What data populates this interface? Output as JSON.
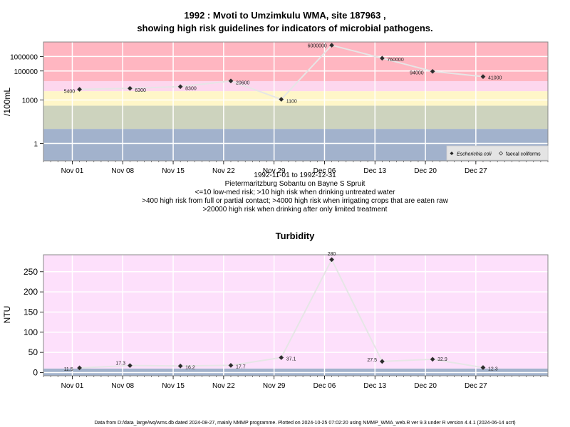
{
  "chart_data": [
    {
      "type": "line",
      "title_line1": "1992 : Mvoti to Umzimkulu WMA, site 187963 ,",
      "title_line2": "showing high risk guidelines for indicators of microbial pathogens.",
      "ylabel": "/100mL",
      "y_scale": "log",
      "yticks": [
        1,
        1000,
        100000,
        1000000
      ],
      "ytick_labels": [
        "1",
        "1000",
        "100000",
        "1000000"
      ],
      "xtick_labels": [
        "Nov 01",
        "Nov 08",
        "Nov 15",
        "Nov 22",
        "Nov 29",
        "Dec 06",
        "Dec 13",
        "Dec 20",
        "Dec 27"
      ],
      "xtick_dates": [
        "1992-11-01",
        "1992-11-08",
        "1992-11-15",
        "1992-11-22",
        "1992-11-29",
        "1992-12-06",
        "1992-12-13",
        "1992-12-20",
        "1992-12-27"
      ],
      "xlim": [
        "1992-10-28",
        "1993-01-06"
      ],
      "bands": [
        {
          "from": 20000,
          "to": 100000000,
          "color": "#ffb6c1"
        },
        {
          "from": 4000,
          "to": 20000,
          "color": "#fdd7ee"
        },
        {
          "from": 400,
          "to": 4000,
          "color": "#fff6c8"
        },
        {
          "from": 10,
          "to": 400,
          "color": "#cdd3be"
        },
        {
          "from": 0.01,
          "to": 10,
          "color": "#a2b2cc"
        }
      ],
      "series": [
        {
          "name": "Escherichia coli",
          "x": [
            "1992-11-02",
            "1992-11-09",
            "1992-11-16",
            "1992-11-23",
            "1992-11-30",
            "1992-12-07",
            "1992-12-14",
            "1992-12-21",
            "1992-12-28"
          ],
          "y": [
            5400,
            6300,
            8300,
            20600,
            1100,
            6000000,
            760000,
            94000,
            41000
          ],
          "labels": [
            "5400",
            "6300",
            "8300",
            "20600",
            "1100",
            "6000000",
            "760000",
            "94000",
            "41000"
          ]
        }
      ],
      "legend": {
        "position": "bottom-right",
        "items": [
          "Escherichia coli",
          "faecal coliforms"
        ]
      },
      "subtitle_lines": [
        "1992-11-01 to 1992-12-31",
        "Pietermaritzburg Sobantu on Bayne S Spruit",
        "<=10 low-med risk; >10 high risk when drinking untreated water",
        ">400 high risk from full or partial contact; >4000 high risk when irrigating crops that are eaten raw",
        ">20000 high risk when drinking after only limited treatment"
      ],
      "grid": true
    },
    {
      "type": "line",
      "title": "Turbidity",
      "ylabel": "NTU",
      "ylim": [
        -8,
        292
      ],
      "yticks": [
        0,
        50,
        100,
        150,
        200,
        250
      ],
      "ytick_labels": [
        "0",
        "50",
        "100",
        "150",
        "200",
        "250"
      ],
      "xtick_labels": [
        "Nov 01",
        "Nov 08",
        "Nov 15",
        "Nov 22",
        "Nov 29",
        "Dec 06",
        "Dec 13",
        "Dec 20",
        "Dec 27"
      ],
      "xtick_dates": [
        "1992-11-01",
        "1992-11-08",
        "1992-11-15",
        "1992-11-22",
        "1992-11-29",
        "1992-12-06",
        "1992-12-13",
        "1992-12-20",
        "1992-12-27"
      ],
      "xlim": [
        "1992-10-28",
        "1993-01-06"
      ],
      "bands": [
        {
          "from": -8,
          "to": 10,
          "color": "#a2b2cc"
        },
        {
          "from": 10,
          "to": 292,
          "color": "#fde0fb"
        }
      ],
      "series": [
        {
          "name": "Turbidity",
          "x": [
            "1992-11-02",
            "1992-11-09",
            "1992-11-16",
            "1992-11-23",
            "1992-11-30",
            "1992-12-07",
            "1992-12-14",
            "1992-12-21",
            "1992-12-28"
          ],
          "y": [
            11.5,
            17.3,
            16.2,
            17.7,
            37.1,
            280,
            27.5,
            32.9,
            12.3
          ],
          "labels": [
            "11.5",
            "17.3",
            "16.2",
            "17.7",
            "37.1",
            "280",
            "27.5",
            "32.9",
            "12.3"
          ]
        }
      ],
      "grid": true
    }
  ],
  "footer": "Data from D:/data_large/wq/wms.db dated 2024-08-27, mainly NMMP programme. Plotted on 2024-10-25 07:02:20 using NMMP_WMA_web.R ver 9.3 under R version 4.4.1 (2024-06-14 ucrt)"
}
